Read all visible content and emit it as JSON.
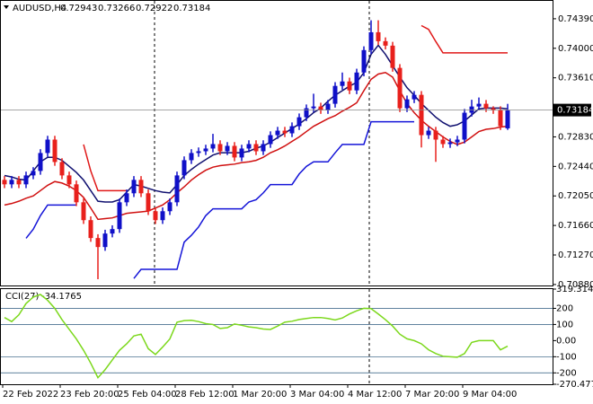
{
  "chart_data": [
    {
      "type": "candlestick",
      "title": "AUDUSD,H4",
      "categories": [
        "22 Feb 2022",
        null,
        null,
        null,
        null,
        null,
        null,
        null,
        "23 Feb 20:00",
        null,
        null,
        null,
        null,
        null,
        null,
        null,
        "25 Feb 04:00",
        null,
        null,
        null,
        null,
        null,
        null,
        null,
        "28 Feb 12:00",
        null,
        null,
        null,
        null,
        null,
        null,
        null,
        "1 Mar 20:00",
        null,
        null,
        null,
        null,
        null,
        null,
        null,
        "3 Mar 04:00",
        null,
        null,
        null,
        null,
        null,
        null,
        null,
        "4 Mar 12:00",
        null,
        null,
        null,
        null,
        null,
        null,
        null,
        "7 Mar 20:00",
        null,
        null,
        null,
        null,
        null,
        null,
        null,
        "9 Mar 04:00",
        null,
        null,
        null,
        null,
        null,
        null
      ],
      "ohlc": [
        [
          0.72262,
          0.72312,
          0.72153,
          0.72203
        ],
        [
          0.72203,
          0.72312,
          0.72153,
          0.72262
        ],
        [
          0.72262,
          0.72312,
          0.72153,
          0.72203
        ],
        [
          0.72203,
          0.72371,
          0.72153,
          0.72321
        ],
        [
          0.72321,
          0.7243,
          0.72271,
          0.7238
        ],
        [
          0.7238,
          0.72667,
          0.7233,
          0.72617
        ],
        [
          0.72617,
          0.72844,
          0.72567,
          0.72794
        ],
        [
          0.72794,
          0.72844,
          0.72448,
          0.72498
        ],
        [
          0.72498,
          0.72548,
          0.72271,
          0.72321
        ],
        [
          0.72321,
          0.72371,
          0.72153,
          0.72203
        ],
        [
          0.72203,
          0.72253,
          0.71916,
          0.71966
        ],
        [
          0.71966,
          0.72016,
          0.7168,
          0.7173
        ],
        [
          0.7173,
          0.7178,
          0.71444,
          0.71494
        ],
        [
          0.71494,
          0.71544,
          0.7095,
          0.71375
        ],
        [
          0.71375,
          0.71603,
          0.71325,
          0.71553
        ],
        [
          0.71553,
          0.71662,
          0.71503,
          0.71612
        ],
        [
          0.71612,
          0.72016,
          0.71562,
          0.71966
        ],
        [
          0.71966,
          0.72135,
          0.71916,
          0.72085
        ],
        [
          0.72085,
          0.72312,
          0.72035,
          0.72262
        ],
        [
          0.72262,
          0.72312,
          0.72035,
          0.72085
        ],
        [
          0.72085,
          0.72135,
          0.71798,
          0.71848
        ],
        [
          0.71848,
          0.71898,
          0.7168,
          0.7173
        ],
        [
          0.7173,
          0.71898,
          0.7168,
          0.71848
        ],
        [
          0.71848,
          0.72016,
          0.71798,
          0.71966
        ],
        [
          0.71966,
          0.72371,
          0.71916,
          0.72321
        ],
        [
          0.72321,
          0.72572,
          0.72271,
          0.72522
        ],
        [
          0.72522,
          0.72667,
          0.72472,
          0.72617
        ],
        [
          0.72617,
          0.7269,
          0.72567,
          0.7264
        ],
        [
          0.7264,
          0.72726,
          0.7259,
          0.72676
        ],
        [
          0.72676,
          0.7287,
          0.72626,
          0.72735
        ],
        [
          0.72735,
          0.72785,
          0.7259,
          0.7264
        ],
        [
          0.7264,
          0.72761,
          0.7259,
          0.72711
        ],
        [
          0.72711,
          0.72761,
          0.72508,
          0.72558
        ],
        [
          0.72558,
          0.72726,
          0.72508,
          0.72676
        ],
        [
          0.72676,
          0.72785,
          0.72626,
          0.72735
        ],
        [
          0.72735,
          0.72785,
          0.7259,
          0.7264
        ],
        [
          0.7264,
          0.72785,
          0.7259,
          0.72735
        ],
        [
          0.72735,
          0.72903,
          0.72685,
          0.72853
        ],
        [
          0.72853,
          0.72962,
          0.72803,
          0.72912
        ],
        [
          0.72912,
          0.72962,
          0.72827,
          0.72877
        ],
        [
          0.72877,
          0.73021,
          0.72827,
          0.72971
        ],
        [
          0.72971,
          0.73139,
          0.72921,
          0.73089
        ],
        [
          0.73089,
          0.73258,
          0.73039,
          0.73208
        ],
        [
          0.73208,
          0.734,
          0.73158,
          0.73231
        ],
        [
          0.73231,
          0.73281,
          0.73134,
          0.73184
        ],
        [
          0.73184,
          0.73317,
          0.73134,
          0.73267
        ],
        [
          0.73267,
          0.73553,
          0.73217,
          0.73503
        ],
        [
          0.73503,
          0.7368,
          0.73453,
          0.73562
        ],
        [
          0.73562,
          0.73612,
          0.73394,
          0.73444
        ],
        [
          0.73444,
          0.7373,
          0.73394,
          0.7368
        ],
        [
          0.7368,
          0.74026,
          0.7363,
          0.73976
        ],
        [
          0.73976,
          0.7437,
          0.73926,
          0.74212
        ],
        [
          0.74212,
          0.7437,
          0.74044,
          0.74094
        ],
        [
          0.74094,
          0.74144,
          0.73985,
          0.74035
        ],
        [
          0.74035,
          0.74085,
          0.73691,
          0.73741
        ],
        [
          0.73741,
          0.73791,
          0.73158,
          0.73208
        ],
        [
          0.73208,
          0.73376,
          0.73158,
          0.73326
        ],
        [
          0.73326,
          0.73435,
          0.73276,
          0.73385
        ],
        [
          0.73385,
          0.73435,
          0.7269,
          0.72853
        ],
        [
          0.72853,
          0.72962,
          0.72803,
          0.72912
        ],
        [
          0.72912,
          0.72962,
          0.725,
          0.72794
        ],
        [
          0.72794,
          0.72844,
          0.72685,
          0.72735
        ],
        [
          0.72735,
          0.72808,
          0.72685,
          0.72758
        ],
        [
          0.72758,
          0.72844,
          0.72708,
          0.72794
        ],
        [
          0.72794,
          0.73199,
          0.72744,
          0.73149
        ],
        [
          0.73149,
          0.7332,
          0.73099,
          0.73231
        ],
        [
          0.73231,
          0.7335,
          0.73181,
          0.73267
        ],
        [
          0.73267,
          0.73317,
          0.73158,
          0.73208
        ],
        [
          0.73208,
          0.73234,
          0.73134,
          0.73184
        ],
        [
          0.73184,
          0.73234,
          0.72921,
          0.72971
        ],
        [
          0.72943,
          0.73266,
          0.72922,
          0.73184
        ]
      ],
      "up_color": "#1010c8",
      "down_color": "#e8201c",
      "overlays": [
        {
          "color": "#101070",
          "values": [
            0.7232,
            0.723,
            0.7227,
            0.7226,
            0.7238,
            0.725,
            0.7256,
            0.7256,
            0.7252,
            0.7244,
            0.7236,
            0.7226,
            0.7212,
            0.7198,
            0.7197,
            0.7197,
            0.72,
            0.721,
            0.722,
            0.7218,
            0.7215,
            0.7212,
            0.721,
            0.7209,
            0.722,
            0.7232,
            0.724,
            0.7247,
            0.7253,
            0.7259,
            0.7262,
            0.7262,
            0.7262,
            0.7262,
            0.7264,
            0.7268,
            0.7271,
            0.7276,
            0.7282,
            0.7288,
            0.7294,
            0.73,
            0.7307,
            0.7315,
            0.7321,
            0.733,
            0.7338,
            0.7344,
            0.735,
            0.7355,
            0.7368,
            0.7392,
            0.7404,
            0.7392,
            0.7377,
            0.7362,
            0.7348,
            0.7338,
            0.7327,
            0.7318,
            0.7309,
            0.7302,
            0.7297,
            0.7299,
            0.7304,
            0.7312,
            0.732,
            0.7321,
            0.7321,
            0.7321,
            0.732
          ]
        },
        {
          "color": "#d01010",
          "values": [
            0.7193,
            0.7195,
            0.7198,
            0.7202,
            0.7205,
            0.7212,
            0.7219,
            0.7224,
            0.7222,
            0.7218,
            0.7212,
            0.7203,
            0.7189,
            0.7174,
            0.7175,
            0.7176,
            0.7179,
            0.7182,
            0.7183,
            0.7184,
            0.7185,
            0.7189,
            0.7193,
            0.72,
            0.7209,
            0.7217,
            0.7226,
            0.7233,
            0.7239,
            0.7243,
            0.7245,
            0.7246,
            0.7247,
            0.7249,
            0.725,
            0.7252,
            0.7256,
            0.7262,
            0.7266,
            0.7271,
            0.7277,
            0.7283,
            0.729,
            0.7297,
            0.7302,
            0.7307,
            0.7311,
            0.7317,
            0.7322,
            0.7328,
            0.7344,
            0.7359,
            0.7366,
            0.7368,
            0.7362,
            0.7344,
            0.7327,
            0.7315,
            0.7305,
            0.7297,
            0.729,
            0.7283,
            0.7277,
            0.7273,
            0.7276,
            0.7283,
            0.729,
            0.7293,
            0.7294,
            0.7296,
            0.7297
          ]
        },
        {
          "color": "#1414d8",
          "values": [
            null,
            null,
            null,
            0.7149,
            0.7161,
            0.7179,
            0.7193,
            0.7193,
            0.7193,
            0.7193,
            0.7193,
            null,
            null,
            null,
            null,
            null,
            null,
            null,
            0.7096,
            0.7108,
            0.7108,
            0.7108,
            0.7108,
            0.7108,
            0.7108,
            0.7144,
            0.7153,
            0.7164,
            0.7179,
            0.7188,
            0.7188,
            0.7188,
            0.7188,
            0.7188,
            0.7197,
            0.72,
            0.7209,
            0.722,
            0.722,
            0.722,
            0.722,
            0.7234,
            0.7244,
            0.725,
            0.725,
            0.725,
            0.7262,
            0.7273,
            0.7273,
            0.7273,
            0.7273,
            0.7303,
            0.7303,
            0.7303,
            0.7303,
            0.7303,
            0.7303,
            0.7303,
            null,
            null,
            null,
            null,
            null,
            null,
            null,
            null,
            null,
            null,
            null,
            null,
            null
          ]
        },
        {
          "color": "#e01818",
          "values": [
            null,
            null,
            null,
            null,
            null,
            null,
            null,
            null,
            null,
            null,
            null,
            0.7273,
            0.7238,
            0.7212,
            0.7212,
            0.7212,
            0.7212,
            0.7212,
            null,
            null,
            null,
            null,
            null,
            null,
            null,
            null,
            null,
            null,
            null,
            null,
            null,
            null,
            null,
            null,
            null,
            null,
            null,
            null,
            null,
            null,
            null,
            null,
            null,
            null,
            null,
            null,
            null,
            null,
            null,
            null,
            null,
            null,
            null,
            null,
            null,
            null,
            null,
            null,
            0.743,
            0.7425,
            0.7409,
            0.7394,
            0.7394,
            0.7394,
            0.7394,
            0.7394,
            0.7394,
            0.7394,
            0.7394,
            0.7394,
            0.7394
          ]
        }
      ],
      "ylim": [
        0.70867,
        0.74626
      ],
      "yticks": [
        {
          "value": 0.7439,
          "label": "0.74390"
        },
        {
          "value": 0.74,
          "label": "0.74000"
        },
        {
          "value": 0.7361,
          "label": "0.73610"
        },
        {
          "value": 0.7283,
          "label": "0.72830"
        },
        {
          "value": 0.7244,
          "label": "0.72440"
        },
        {
          "value": 0.7205,
          "label": "0.72050"
        },
        {
          "value": 0.7166,
          "label": "0.71660"
        },
        {
          "value": 0.7127,
          "label": "0.71270"
        },
        {
          "value": 0.7088,
          "label": "0.70880"
        }
      ]
    },
    {
      "type": "line",
      "title": "CCI(27)",
      "color": "#7cd81c",
      "values": [
        143,
        118,
        160,
        230,
        270,
        286,
        250,
        200,
        130,
        70,
        10,
        -60,
        -140,
        -230,
        -180,
        -120,
        -60,
        -20,
        29,
        40,
        -50,
        -86,
        -40,
        10,
        114,
        124,
        126,
        118,
        105,
        100,
        75,
        80,
        103,
        95,
        85,
        80,
        72,
        69,
        90,
        114,
        120,
        131,
        137,
        143,
        143,
        137,
        128,
        140,
        165,
        185,
        200,
        198,
        165,
        130,
        90,
        40,
        11,
        0,
        -20,
        -57,
        -80,
        -97,
        -100,
        -103,
        -80,
        -11,
        0,
        0,
        0,
        -57,
        -34.1765
      ],
      "ylim": [
        -270.477,
        319.3145
      ],
      "yticks": [
        319.3145,
        200,
        100,
        {
          "value": 0,
          "label": "0.00"
        },
        -100,
        -200,
        -270.477
      ],
      "levels": [
        200,
        100,
        -100,
        -200
      ]
    }
  ]
}
